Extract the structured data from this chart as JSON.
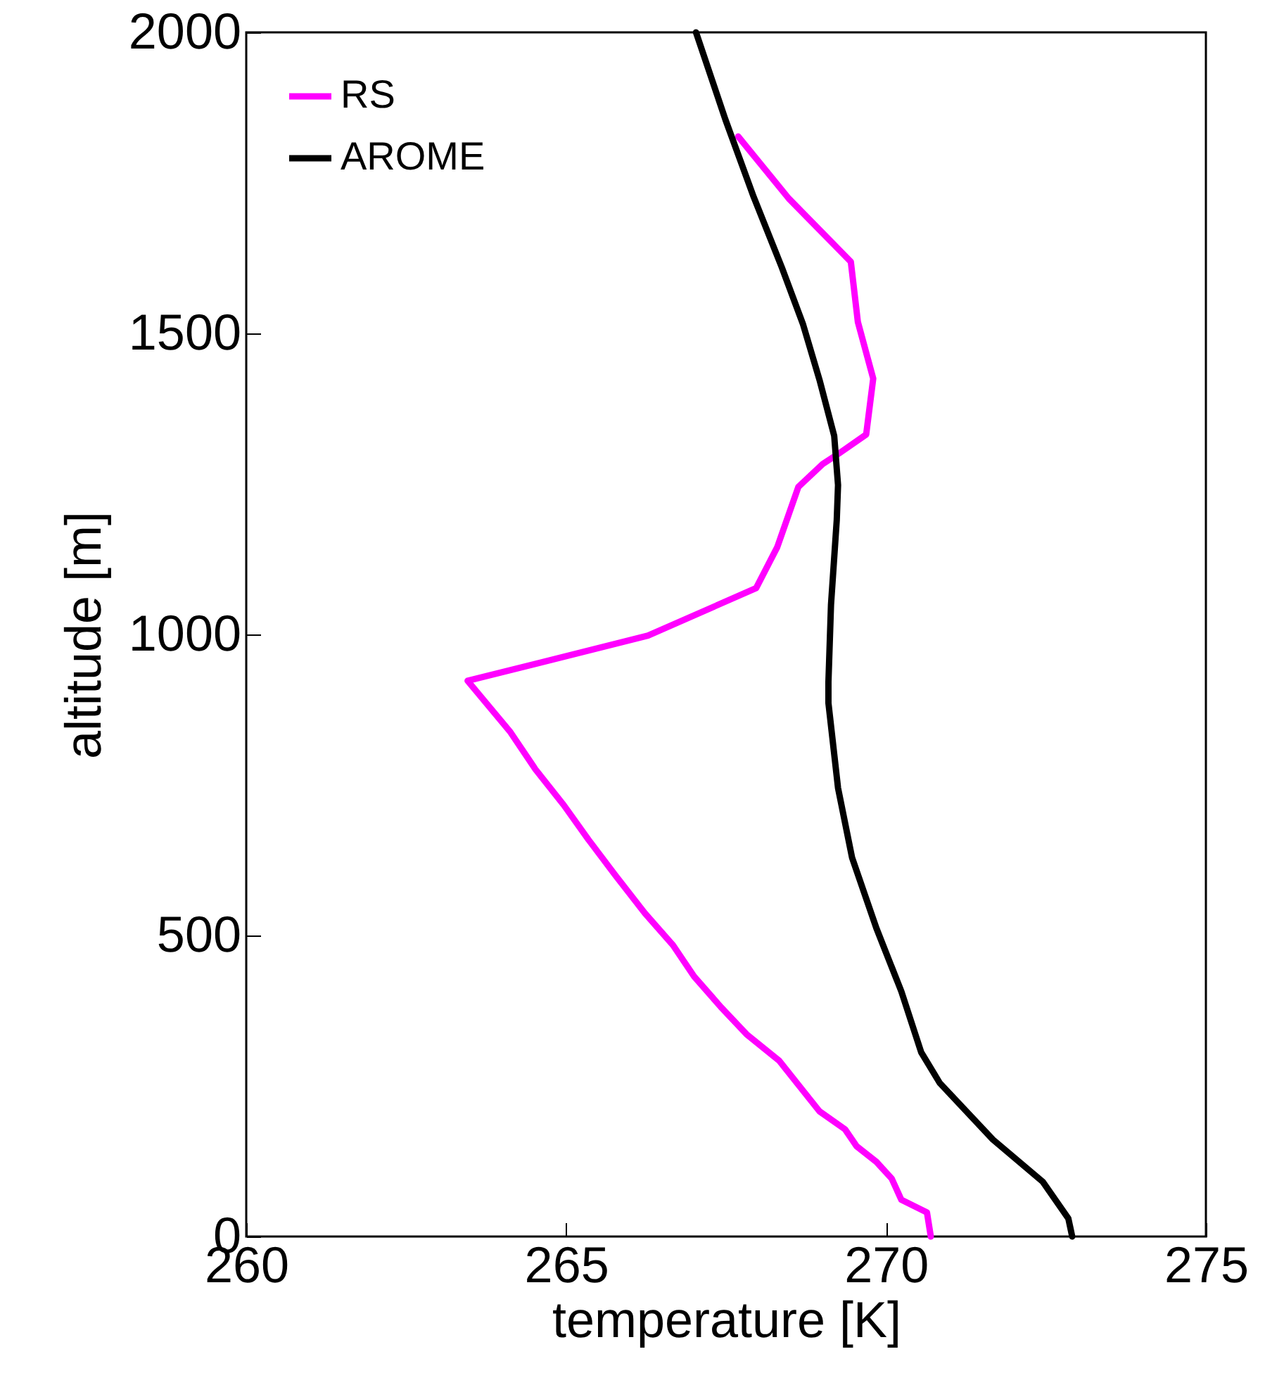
{
  "chart_data": {
    "type": "line",
    "xlabel": "temperature [K]",
    "ylabel": "altitude [m]",
    "xlim": [
      260,
      275
    ],
    "xticks": [
      260,
      265,
      270,
      275
    ],
    "ylim": [
      0,
      2000
    ],
    "yticks": [
      0,
      500,
      1000,
      1500,
      2000
    ],
    "legend": "top left",
    "grid": false,
    "marker": "none",
    "line_style": "solid",
    "series": [
      {
        "name": "RS",
        "color": "#ff00ff",
        "x": [
          270.7,
          270.64,
          270.24,
          270.09,
          269.85,
          269.54,
          269.36,
          268.96,
          268.66,
          268.33,
          267.82,
          267.42,
          267.0,
          266.67,
          266.23,
          265.77,
          265.35,
          264.96,
          264.52,
          264.12,
          263.46,
          266.28,
          267.97,
          268.3,
          268.63,
          269.01,
          269.27,
          269.69,
          269.8,
          269.56,
          269.45,
          268.48,
          267.69
        ],
        "values": [
          0,
          40,
          61,
          96,
          124,
          150,
          178,
          208,
          248,
          292,
          336,
          381,
          432,
          484,
          537,
          600,
          659,
          717,
          776,
          839,
          923,
          998,
          1077,
          1145,
          1245,
          1283,
          1301,
          1332,
          1425,
          1519,
          1619,
          1724,
          1827
        ]
      },
      {
        "name": "AROME",
        "color": "#000000",
        "x": [
          272.91,
          272.85,
          272.45,
          271.67,
          270.84,
          270.55,
          270.24,
          269.85,
          269.47,
          269.25,
          269.1,
          269.1,
          269.14,
          269.23,
          269.25,
          269.19,
          268.96,
          268.7,
          268.37,
          267.93,
          267.49,
          267.03
        ],
        "values": [
          0,
          30,
          91,
          161,
          255,
          306,
          407,
          512,
          629,
          745,
          886,
          921,
          1049,
          1190,
          1248,
          1330,
          1423,
          1516,
          1610,
          1727,
          1855,
          2000
        ]
      }
    ]
  }
}
